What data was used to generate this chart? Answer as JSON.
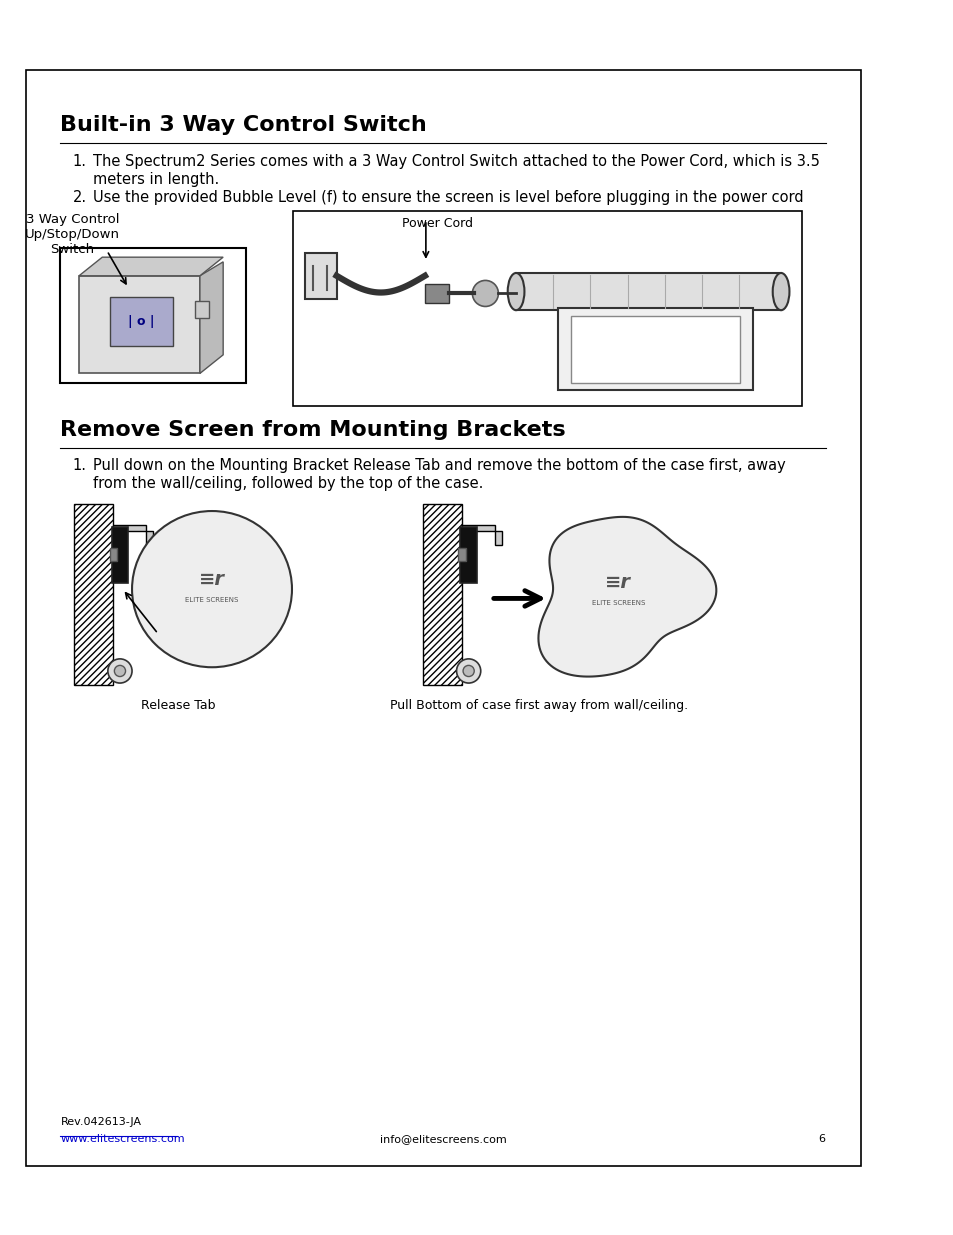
{
  "bg_color": "#ffffff",
  "border_color": "#000000",
  "section1_title": "Built-in 3 Way Control Switch",
  "section1_item1a": "The Spectrum2 Series comes with a 3 Way Control Switch attached to the Power Cord, which is 3.5",
  "section1_item1b": "meters in length.",
  "section1_item2": "Use the provided Bubble Level (f) to ensure the screen is level before plugging in the power cord",
  "label_switch": "3 Way Control\nUp/Stop/Down\nSwitch",
  "label_power_cord": "Power Cord",
  "section2_title": "Remove Screen from Mounting Brackets",
  "section2_item1a": "Pull down on the Mounting Bracket Release Tab and remove the bottom of the case first, away",
  "section2_item1b": "from the wall/ceiling, followed by the top of the case.",
  "label_release_tab": "Release Tab",
  "label_pull_bottom": "Pull Bottom of case first away from wall/ceiling.",
  "footer_rev": "Rev.042613-JA",
  "footer_url": "www.elitescreens.com",
  "footer_email": "info@elitescreens.com",
  "footer_page": "6",
  "url_color": "#0000cc"
}
